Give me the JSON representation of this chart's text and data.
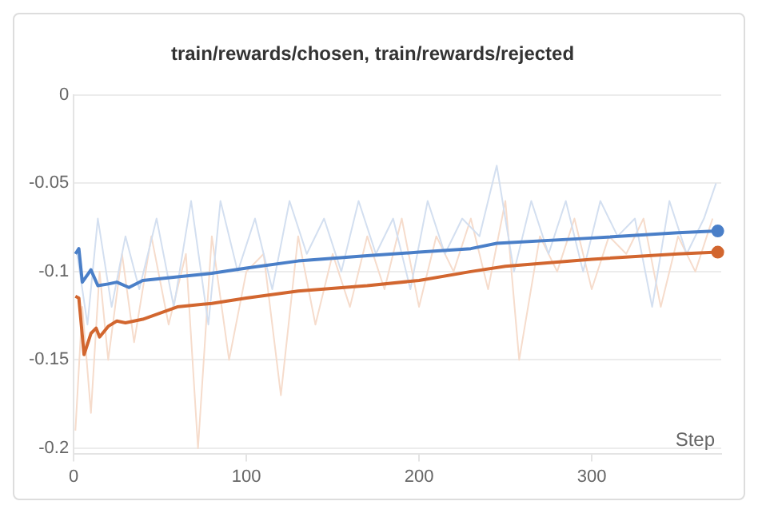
{
  "chart_data": {
    "type": "line",
    "title": "train/rewards/chosen, train/rewards/rejected",
    "xlabel": "Step",
    "xlim": [
      0,
      375
    ],
    "xticks": [
      0,
      100,
      200,
      300
    ],
    "ylim": [
      -0.203,
      0
    ],
    "yticks": [
      0,
      -0.05,
      -0.1,
      -0.15,
      -0.2
    ],
    "grid": "y",
    "legend": false,
    "marker": "none",
    "line_style": "solid",
    "series": [
      {
        "color": "#f6dccc",
        "x": [
          1,
          5,
          10,
          15,
          20,
          28,
          35,
          45,
          55,
          65,
          72,
          80,
          90,
          100,
          110,
          120,
          130,
          140,
          150,
          160,
          170,
          180,
          190,
          200,
          210,
          220,
          230,
          240,
          250,
          258,
          270,
          280,
          290,
          300,
          310,
          320,
          330,
          340,
          350,
          360,
          370
        ],
        "values": [
          -0.19,
          -0.12,
          -0.18,
          -0.1,
          -0.15,
          -0.09,
          -0.14,
          -0.08,
          -0.13,
          -0.09,
          -0.2,
          -0.08,
          -0.15,
          -0.1,
          -0.09,
          -0.17,
          -0.08,
          -0.13,
          -0.09,
          -0.12,
          -0.08,
          -0.11,
          -0.07,
          -0.12,
          -0.08,
          -0.1,
          -0.07,
          -0.11,
          -0.06,
          -0.15,
          -0.08,
          -0.1,
          -0.07,
          -0.11,
          -0.08,
          -0.09,
          -0.07,
          -0.12,
          -0.08,
          -0.1,
          -0.07
        ]
      },
      {
        "color": "#d3dff0",
        "x": [
          2,
          8,
          14,
          22,
          30,
          38,
          48,
          58,
          68,
          78,
          85,
          95,
          105,
          115,
          125,
          135,
          145,
          155,
          165,
          175,
          185,
          195,
          205,
          215,
          225,
          235,
          245,
          255,
          265,
          275,
          285,
          295,
          305,
          315,
          325,
          335,
          345,
          355,
          365,
          372
        ],
        "values": [
          -0.09,
          -0.13,
          -0.07,
          -0.12,
          -0.08,
          -0.11,
          -0.07,
          -0.12,
          -0.06,
          -0.13,
          -0.06,
          -0.1,
          -0.07,
          -0.11,
          -0.06,
          -0.09,
          -0.07,
          -0.1,
          -0.06,
          -0.09,
          -0.07,
          -0.11,
          -0.06,
          -0.09,
          -0.07,
          -0.08,
          -0.04,
          -0.1,
          -0.06,
          -0.09,
          -0.06,
          -0.1,
          -0.06,
          -0.08,
          -0.07,
          -0.12,
          -0.06,
          -0.09,
          -0.07,
          -0.05
        ]
      },
      {
        "color": "#4a7fc8",
        "x": [
          1,
          3,
          5,
          10,
          14,
          20,
          25,
          32,
          40,
          60,
          80,
          100,
          130,
          170,
          200,
          230,
          245,
          300,
          350,
          373
        ],
        "values": [
          -0.09,
          -0.087,
          -0.106,
          -0.099,
          -0.108,
          -0.107,
          -0.106,
          -0.109,
          -0.105,
          -0.103,
          -0.101,
          -0.098,
          -0.094,
          -0.091,
          -0.089,
          -0.087,
          -0.084,
          -0.081,
          -0.078,
          -0.077
        ]
      },
      {
        "color": "#d2662f",
        "x": [
          1,
          3,
          6,
          10,
          13,
          15,
          20,
          25,
          30,
          40,
          60,
          80,
          100,
          130,
          170,
          200,
          230,
          250,
          300,
          350,
          373
        ],
        "values": [
          -0.114,
          -0.115,
          -0.147,
          -0.135,
          -0.132,
          -0.137,
          -0.131,
          -0.128,
          -0.129,
          -0.127,
          -0.12,
          -0.118,
          -0.115,
          -0.111,
          -0.108,
          -0.105,
          -0.1,
          -0.097,
          -0.093,
          -0.09,
          -0.089
        ]
      }
    ]
  }
}
